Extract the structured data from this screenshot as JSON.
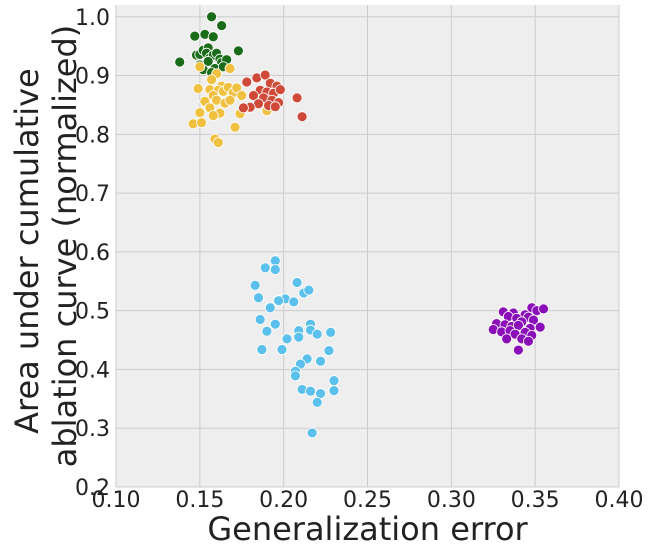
{
  "chart_data": {
    "type": "scatter",
    "title": "",
    "xlabel": "Generalization error",
    "ylabel_lines": [
      "Area under cumulative",
      "ablation curve (normalized)"
    ],
    "xlim": [
      0.1,
      0.4
    ],
    "ylim": [
      0.2,
      1.02
    ],
    "x_ticks": [
      "0.10",
      "0.15",
      "0.20",
      "0.25",
      "0.30",
      "0.35",
      "0.40"
    ],
    "y_ticks": [
      "0.2",
      "0.3",
      "0.4",
      "0.5",
      "0.6",
      "0.7",
      "0.8",
      "0.9",
      "1.0"
    ],
    "grid": true,
    "background_color": "#eeeeee",
    "grid_color": "#cccccc",
    "series": [
      {
        "color": "#1a6b1a",
        "points": [
          [
            0.157,
            1.0
          ],
          [
            0.163,
            0.985
          ],
          [
            0.153,
            0.97
          ],
          [
            0.158,
            0.966
          ],
          [
            0.147,
            0.967
          ],
          [
            0.173,
            0.942
          ],
          [
            0.138,
            0.923
          ],
          [
            0.148,
            0.935
          ],
          [
            0.15,
            0.936
          ],
          [
            0.152,
            0.943
          ],
          [
            0.155,
            0.947
          ],
          [
            0.154,
            0.938
          ],
          [
            0.156,
            0.93
          ],
          [
            0.158,
            0.935
          ],
          [
            0.16,
            0.938
          ],
          [
            0.162,
            0.928
          ],
          [
            0.163,
            0.922
          ],
          [
            0.166,
            0.927
          ],
          [
            0.15,
            0.918
          ],
          [
            0.155,
            0.924
          ],
          [
            0.159,
            0.912
          ],
          [
            0.164,
            0.915
          ],
          [
            0.152,
            0.91
          ],
          [
            0.157,
            0.905
          ]
        ]
      },
      {
        "color": "#f0c040",
        "points": [
          [
            0.15,
            0.915
          ],
          [
            0.168,
            0.912
          ],
          [
            0.16,
            0.903
          ],
          [
            0.157,
            0.893
          ],
          [
            0.163,
            0.882
          ],
          [
            0.149,
            0.878
          ],
          [
            0.156,
            0.876
          ],
          [
            0.161,
            0.875
          ],
          [
            0.164,
            0.873
          ],
          [
            0.167,
            0.88
          ],
          [
            0.17,
            0.871
          ],
          [
            0.172,
            0.879
          ],
          [
            0.175,
            0.866
          ],
          [
            0.158,
            0.866
          ],
          [
            0.153,
            0.856
          ],
          [
            0.16,
            0.858
          ],
          [
            0.165,
            0.853
          ],
          [
            0.168,
            0.858
          ],
          [
            0.186,
            0.862
          ],
          [
            0.189,
            0.858
          ],
          [
            0.156,
            0.845
          ],
          [
            0.162,
            0.836
          ],
          [
            0.15,
            0.837
          ],
          [
            0.158,
            0.832
          ],
          [
            0.146,
            0.818
          ],
          [
            0.151,
            0.82
          ],
          [
            0.171,
            0.812
          ],
          [
            0.174,
            0.835
          ],
          [
            0.19,
            0.84
          ],
          [
            0.159,
            0.792
          ],
          [
            0.161,
            0.786
          ]
        ]
      },
      {
        "color": "#d04a3a",
        "points": [
          [
            0.184,
            0.896
          ],
          [
            0.189,
            0.901
          ],
          [
            0.178,
            0.889
          ],
          [
            0.192,
            0.887
          ],
          [
            0.196,
            0.882
          ],
          [
            0.186,
            0.875
          ],
          [
            0.19,
            0.872
          ],
          [
            0.194,
            0.87
          ],
          [
            0.198,
            0.876
          ],
          [
            0.182,
            0.866
          ],
          [
            0.188,
            0.862
          ],
          [
            0.193,
            0.858
          ],
          [
            0.197,
            0.854
          ],
          [
            0.185,
            0.852
          ],
          [
            0.18,
            0.846
          ],
          [
            0.176,
            0.845
          ],
          [
            0.191,
            0.849
          ],
          [
            0.195,
            0.847
          ],
          [
            0.208,
            0.862
          ],
          [
            0.211,
            0.83
          ]
        ]
      },
      {
        "color": "#5bc0eb",
        "points": [
          [
            0.195,
            0.585
          ],
          [
            0.189,
            0.573
          ],
          [
            0.195,
            0.57
          ],
          [
            0.183,
            0.543
          ],
          [
            0.208,
            0.548
          ],
          [
            0.185,
            0.522
          ],
          [
            0.212,
            0.53
          ],
          [
            0.215,
            0.535
          ],
          [
            0.198,
            0.518
          ],
          [
            0.201,
            0.52
          ],
          [
            0.206,
            0.515
          ],
          [
            0.192,
            0.505
          ],
          [
            0.197,
            0.517
          ],
          [
            0.186,
            0.485
          ],
          [
            0.19,
            0.465
          ],
          [
            0.195,
            0.477
          ],
          [
            0.209,
            0.466
          ],
          [
            0.216,
            0.477
          ],
          [
            0.216,
            0.467
          ],
          [
            0.22,
            0.46
          ],
          [
            0.228,
            0.463
          ],
          [
            0.202,
            0.452
          ],
          [
            0.209,
            0.455
          ],
          [
            0.187,
            0.434
          ],
          [
            0.199,
            0.434
          ],
          [
            0.227,
            0.432
          ],
          [
            0.214,
            0.418
          ],
          [
            0.222,
            0.414
          ],
          [
            0.21,
            0.409
          ],
          [
            0.207,
            0.397
          ],
          [
            0.207,
            0.389
          ],
          [
            0.23,
            0.381
          ],
          [
            0.211,
            0.366
          ],
          [
            0.216,
            0.363
          ],
          [
            0.222,
            0.359
          ],
          [
            0.23,
            0.364
          ],
          [
            0.22,
            0.344
          ],
          [
            0.217,
            0.292
          ]
        ]
      },
      {
        "color": "#8a0fb8",
        "points": [
          [
            0.331,
            0.498
          ],
          [
            0.337,
            0.496
          ],
          [
            0.344,
            0.493
          ],
          [
            0.348,
            0.505
          ],
          [
            0.351,
            0.5
          ],
          [
            0.355,
            0.503
          ],
          [
            0.334,
            0.49
          ],
          [
            0.339,
            0.487
          ],
          [
            0.346,
            0.489
          ],
          [
            0.349,
            0.484
          ],
          [
            0.342,
            0.481
          ],
          [
            0.327,
            0.478
          ],
          [
            0.332,
            0.476
          ],
          [
            0.336,
            0.473
          ],
          [
            0.34,
            0.475
          ],
          [
            0.347,
            0.47
          ],
          [
            0.353,
            0.472
          ],
          [
            0.325,
            0.468
          ],
          [
            0.33,
            0.464
          ],
          [
            0.335,
            0.466
          ],
          [
            0.344,
            0.463
          ],
          [
            0.348,
            0.458
          ],
          [
            0.338,
            0.46
          ],
          [
            0.333,
            0.452
          ],
          [
            0.342,
            0.452
          ],
          [
            0.346,
            0.448
          ],
          [
            0.34,
            0.433
          ]
        ]
      }
    ]
  }
}
